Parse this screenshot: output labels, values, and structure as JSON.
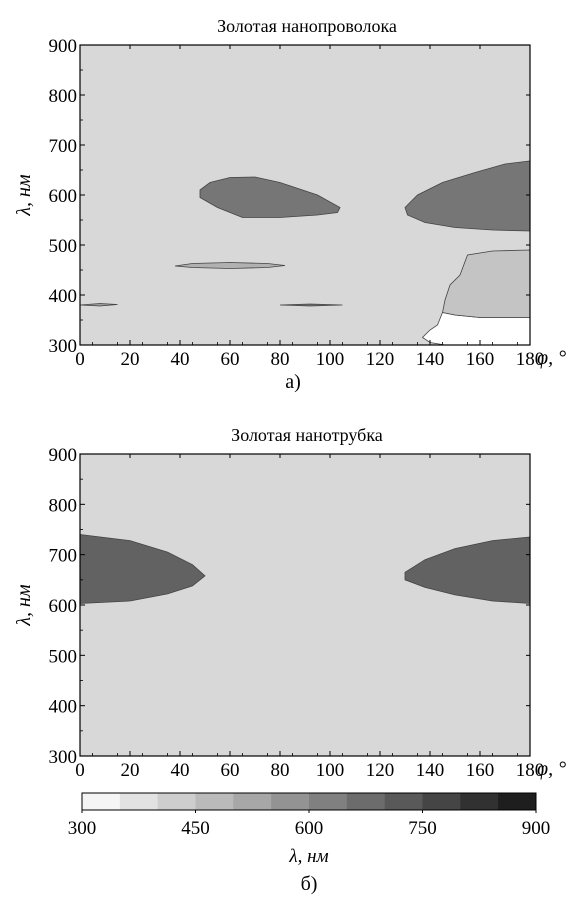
{
  "chart_data": [
    {
      "type": "heatmap",
      "title": "Золотая нанопроволока",
      "xlabel": "φ, °",
      "ylabel": "λ, нм",
      "xlim": [
        0,
        180
      ],
      "ylim": [
        300,
        900
      ],
      "x_ticks": [
        0,
        20,
        40,
        60,
        80,
        100,
        120,
        140,
        160,
        180
      ],
      "y_ticks": [
        300,
        400,
        500,
        600,
        700,
        800,
        900
      ],
      "panel_label": "а)",
      "background_value": 400,
      "regions": [
        {
          "value": 650,
          "points": [
            [
              48,
              610
            ],
            [
              52,
              625
            ],
            [
              60,
              635
            ],
            [
              70,
              636
            ],
            [
              80,
              625
            ],
            [
              95,
              600
            ],
            [
              104,
              575
            ],
            [
              103,
              565
            ],
            [
              95,
              560
            ],
            [
              80,
              555
            ],
            [
              65,
              555
            ],
            [
              55,
              575
            ],
            [
              48,
              595
            ]
          ]
        },
        {
          "value": 650,
          "points": [
            [
              130,
              575
            ],
            [
              135,
              600
            ],
            [
              145,
              625
            ],
            [
              158,
              645
            ],
            [
              170,
              662
            ],
            [
              180,
              668
            ],
            [
              180,
              528
            ],
            [
              165,
              530
            ],
            [
              150,
              535
            ],
            [
              138,
              545
            ],
            [
              131,
              560
            ]
          ]
        },
        {
          "value": 500,
          "points": [
            [
              38,
              458
            ],
            [
              45,
              463
            ],
            [
              60,
              465
            ],
            [
              75,
              463
            ],
            [
              82,
              459
            ],
            [
              75,
              455
            ],
            [
              60,
              453
            ],
            [
              45,
              455
            ]
          ]
        },
        {
          "value": 550,
          "points": [
            [
              0,
              380
            ],
            [
              8,
              383
            ],
            [
              15,
              381
            ],
            [
              8,
              378
            ]
          ]
        },
        {
          "value": 650,
          "points": [
            [
              80,
              380
            ],
            [
              92,
              382
            ],
            [
              105,
              380
            ],
            [
              92,
              378
            ]
          ]
        },
        {
          "value": 300,
          "points": [
            [
              146,
              300
            ],
            [
              180,
              300
            ],
            [
              180,
              355
            ],
            [
              160,
              355
            ],
            [
              150,
              360
            ],
            [
              145,
              365
            ],
            [
              143,
              340
            ],
            [
              140,
              330
            ],
            [
              137,
              315
            ],
            [
              140,
              305
            ]
          ]
        },
        {
          "value": 450,
          "points": [
            [
              145,
              365
            ],
            [
              150,
              360
            ],
            [
              160,
              355
            ],
            [
              180,
              355
            ],
            [
              180,
              490
            ],
            [
              165,
              488
            ],
            [
              155,
              480
            ],
            [
              152,
              440
            ],
            [
              148,
              420
            ],
            [
              146,
              390
            ]
          ]
        }
      ]
    },
    {
      "type": "heatmap",
      "title": "Золотая нанотрубка",
      "xlabel": "φ, °",
      "ylabel": "λ, нм",
      "xlim": [
        0,
        180
      ],
      "ylim": [
        300,
        900
      ],
      "x_ticks": [
        0,
        20,
        40,
        60,
        80,
        100,
        120,
        140,
        160,
        180
      ],
      "y_ticks": [
        300,
        400,
        500,
        600,
        700,
        800,
        900
      ],
      "panel_label": "б)",
      "background_value": 400,
      "regions": [
        {
          "value": 700,
          "points": [
            [
              0,
              740
            ],
            [
              20,
              728
            ],
            [
              35,
              705
            ],
            [
              45,
              680
            ],
            [
              50,
              658
            ],
            [
              45,
              638
            ],
            [
              35,
              622
            ],
            [
              20,
              608
            ],
            [
              0,
              603
            ]
          ]
        },
        {
          "value": 700,
          "points": [
            [
              180,
              735
            ],
            [
              165,
              728
            ],
            [
              150,
              712
            ],
            [
              138,
              690
            ],
            [
              130,
              665
            ],
            [
              130,
              650
            ],
            [
              138,
              635
            ],
            [
              150,
              620
            ],
            [
              165,
              608
            ],
            [
              180,
              603
            ]
          ]
        }
      ]
    }
  ],
  "colorbar": {
    "label": "λ, нм",
    "min": 300,
    "max": 900,
    "ticks": [
      300,
      450,
      600,
      750,
      900
    ]
  }
}
